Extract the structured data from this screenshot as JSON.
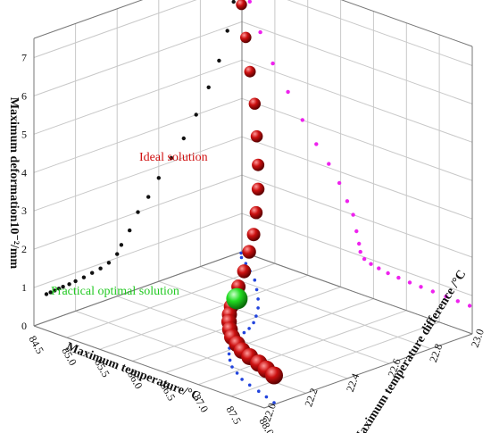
{
  "chart_data": {
    "type": "scatter",
    "dimensions": 3,
    "x_axis": {
      "label": "Maximum temperature/°C",
      "range": [
        84.5,
        88.0
      ],
      "ticks": [
        "84.5",
        "85.0",
        "85.5",
        "86.0",
        "86.5",
        "87.0",
        "87.5",
        "88.0"
      ]
    },
    "y_axis": {
      "label": "Maximum temperature difference /°C",
      "range": [
        22.0,
        23.0
      ],
      "ticks": [
        "22.0",
        "22.2",
        "22.4",
        "22.6",
        "22.8",
        "23.0"
      ]
    },
    "z_axis": {
      "label": "Maximum deformation10⁻²/mm",
      "range": [
        0,
        7.5
      ],
      "ticks": [
        "0",
        "1",
        "2",
        "3",
        "4",
        "5",
        "6",
        "7"
      ]
    },
    "grid": true,
    "colors": {
      "ideal": "#cc1010",
      "optimal": "#22dd22",
      "proj_xz": "#ee22ee",
      "proj_yz": "#111111",
      "proj_xy": "#2244dd",
      "frame": "#777777",
      "grid": "#c8c8c8"
    },
    "series": [
      {
        "name": "Ideal solution",
        "points": [
          [
            84.52,
            22.99,
            7.4
          ],
          [
            84.62,
            22.96,
            6.6
          ],
          [
            84.78,
            22.93,
            5.9
          ],
          [
            84.97,
            22.89,
            5.2
          ],
          [
            85.2,
            22.84,
            4.6
          ],
          [
            85.42,
            22.78,
            4.0
          ],
          [
            85.63,
            22.72,
            3.5
          ],
          [
            85.82,
            22.66,
            3.1
          ],
          [
            85.98,
            22.6,
            2.7
          ],
          [
            86.1,
            22.55,
            2.3
          ],
          [
            86.19,
            22.5,
            2.0
          ],
          [
            86.24,
            22.46,
            1.6
          ],
          [
            86.28,
            22.42,
            1.3
          ],
          [
            86.3,
            22.4,
            1.1
          ],
          [
            86.36,
            22.36,
            0.95
          ],
          [
            86.46,
            22.32,
            0.88
          ],
          [
            86.58,
            22.28,
            0.84
          ],
          [
            86.72,
            22.24,
            0.8
          ],
          [
            86.88,
            22.2,
            0.78
          ],
          [
            87.05,
            22.17,
            0.76
          ],
          [
            87.22,
            22.14,
            0.75
          ],
          [
            87.4,
            22.12,
            0.74
          ],
          [
            87.6,
            22.1,
            0.73
          ],
          [
            87.78,
            22.08,
            0.72
          ],
          [
            87.96,
            22.06,
            0.71
          ]
        ]
      },
      {
        "name": "Practical optimal solution",
        "points": [
          [
            86.32,
            22.4,
            1.05
          ]
        ]
      }
    ],
    "annotations": [
      "Ideal solution",
      "Practical optimal solution"
    ]
  }
}
